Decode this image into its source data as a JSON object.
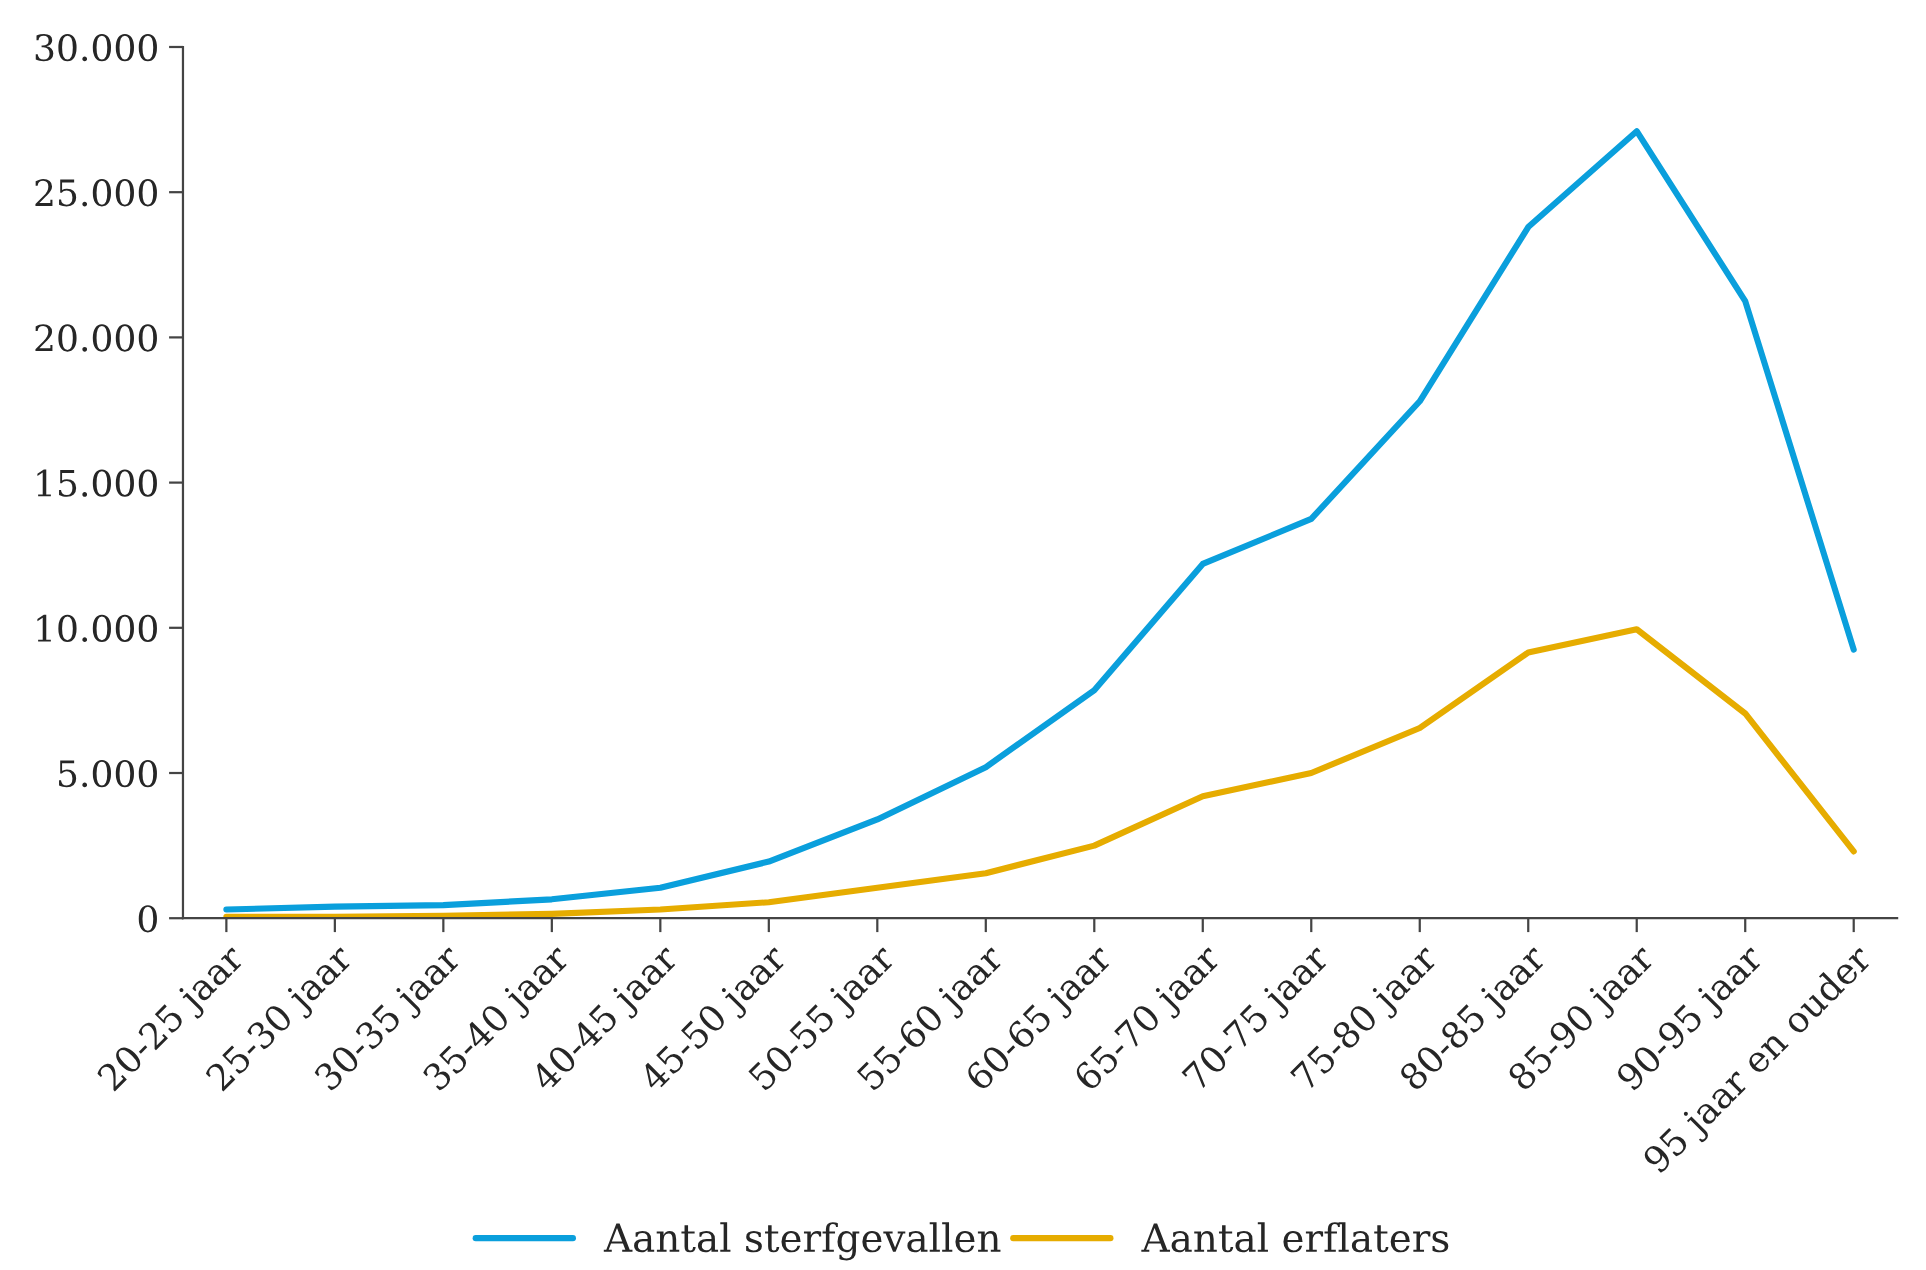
{
  "chart_data": {
    "type": "line",
    "categories": [
      "20-25 jaar",
      "25-30 jaar",
      "30-35 jaar",
      "35-40 jaar",
      "40-45 jaar",
      "45-50 jaar",
      "50-55 jaar",
      "55-60 jaar",
      "60-65 jaar",
      "65-70 jaar",
      "70-75 jaar",
      "75-80 jaar",
      "80-85 jaar",
      "85-90 jaar",
      "90-95 jaar",
      "95 jaar en ouder"
    ],
    "series": [
      {
        "name": "Aantal sterfgevallen",
        "color": "#0a9fdc",
        "values": [
          300,
          400,
          450,
          650,
          1050,
          1950,
          3400,
          5200,
          7850,
          12200,
          13750,
          17800,
          23800,
          27100,
          21250,
          9250
        ]
      },
      {
        "name": "Aantal erflaters",
        "color": "#e6ac00",
        "values": [
          50,
          50,
          80,
          150,
          300,
          550,
          1050,
          1550,
          2500,
          4200,
          5000,
          6550,
          9150,
          9950,
          7050,
          2300
        ]
      }
    ],
    "ylim": [
      0,
      30000
    ],
    "yticks": [
      {
        "value": 0,
        "label": "0"
      },
      {
        "value": 5000,
        "label": "5.000"
      },
      {
        "value": 10000,
        "label": "10.000"
      },
      {
        "value": 15000,
        "label": "15.000"
      },
      {
        "value": 20000,
        "label": "20.000"
      },
      {
        "value": 25000,
        "label": "25.000"
      },
      {
        "value": 30000,
        "label": "30.000"
      }
    ],
    "grid": false,
    "legend": "bottom",
    "marker": "none",
    "line_style": "solid"
  }
}
